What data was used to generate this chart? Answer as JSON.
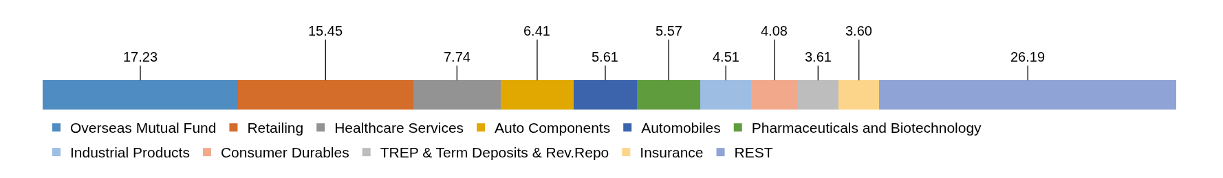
{
  "chart_data": {
    "type": "bar",
    "orientation": "horizontal",
    "stacked": true,
    "categories": [
      null
    ],
    "xlim": [
      0,
      100
    ],
    "legend": "bottom",
    "series": [
      {
        "name": "Overseas Mutual Fund",
        "color": "#4e8cc2",
        "values": [
          17.23
        ],
        "value_labels": [
          "17.23"
        ]
      },
      {
        "name": "Retailing",
        "color": "#d46c2a",
        "values": [
          15.45
        ],
        "value_labels": [
          "15.45"
        ]
      },
      {
        "name": "Healthcare Services",
        "color": "#939393",
        "values": [
          7.74
        ],
        "value_labels": [
          "7.74"
        ]
      },
      {
        "name": "Auto Components",
        "color": "#e0a800",
        "values": [
          6.41
        ],
        "value_labels": [
          "6.41"
        ]
      },
      {
        "name": "Automobiles",
        "color": "#3b64ad",
        "values": [
          5.61
        ],
        "value_labels": [
          "5.61"
        ]
      },
      {
        "name": "Pharmaceuticals and Biotechnology",
        "color": "#5f9c3d",
        "values": [
          5.57
        ],
        "value_labels": [
          "5.57"
        ]
      },
      {
        "name": "Industrial Products",
        "color": "#9dbde3",
        "values": [
          4.51
        ],
        "value_labels": [
          "4.51"
        ]
      },
      {
        "name": "Consumer Durables",
        "color": "#f2a98b",
        "values": [
          4.08
        ],
        "value_labels": [
          "4.08"
        ]
      },
      {
        "name": "TREP & Term Deposits & Rev.Repo",
        "color": "#bdbdbd",
        "values": [
          3.61
        ],
        "value_labels": [
          "3.61"
        ]
      },
      {
        "name": "Insurance",
        "color": "#fdd58a",
        "values": [
          3.6
        ],
        "value_labels": [
          "3.60"
        ]
      },
      {
        "name": "REST",
        "color": "#8fa3d6",
        "values": [
          26.19
        ],
        "value_labels": [
          "26.19"
        ]
      }
    ]
  }
}
